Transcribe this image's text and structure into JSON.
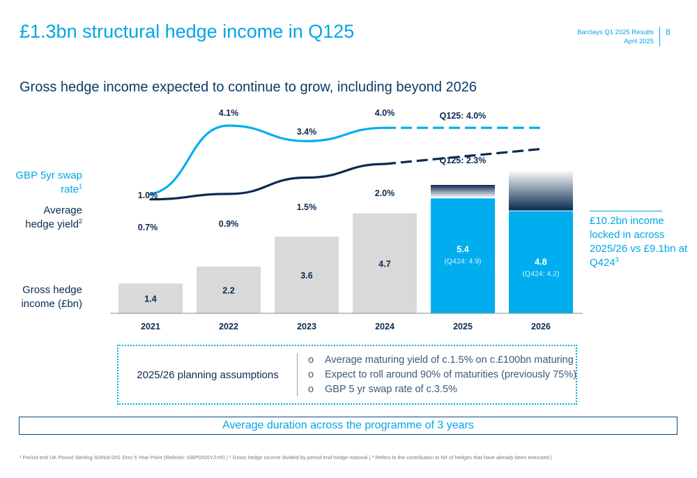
{
  "header": {
    "title": "£1.3bn structural hedge income in Q125",
    "report": "Barclays Q1 2025 Results",
    "date": "April 2025",
    "page": "8"
  },
  "subtitle": "Gross hedge income expected to continue to grow, including beyond 2026",
  "row_labels": {
    "swap_rate": "GBP 5yr swap rate",
    "swap_rate_note": "1",
    "hedge_yield": "Average hedge yield",
    "hedge_yield_note": "2",
    "income": "Gross hedge income (£bn)"
  },
  "chart_data": {
    "type": "bar",
    "categories": [
      "2021",
      "2022",
      "2023",
      "2024",
      "2025",
      "2026"
    ],
    "bars": {
      "values": [
        1.4,
        2.2,
        3.6,
        4.7,
        5.4,
        4.8
      ],
      "labels": [
        "1.4",
        "2.2",
        "3.6",
        "4.7",
        "5.4",
        "4.8"
      ],
      "prior_labels": [
        "",
        "",
        "",
        "",
        "(Q424: 4.9)",
        "(Q424: 4.2)"
      ],
      "forecast_extension": [
        0,
        0,
        0,
        0,
        0.6,
        1.9
      ],
      "ylim": [
        0,
        8
      ]
    },
    "swap_rate": {
      "x": [
        "2021",
        "2022",
        "2023",
        "2024"
      ],
      "values": [
        1.0,
        4.1,
        3.4,
        4.0
      ],
      "labels": [
        "1.0%",
        "4.1%",
        "3.4%",
        "4.0%"
      ],
      "forecast_value": 4.0,
      "forecast_label": "Q125: 4.0%"
    },
    "hedge_yield": {
      "x": [
        "2021",
        "2022",
        "2023",
        "2024"
      ],
      "values": [
        0.7,
        0.9,
        1.5,
        2.0
      ],
      "labels": [
        "0.7%",
        "0.9%",
        "1.5%",
        "2.0%"
      ],
      "forecast_value": 2.3,
      "forecast_label": "Q125: 2.3%"
    },
    "colors": {
      "actual_bar": "#d9d9d9",
      "forecast_bar": "#00aeef",
      "extension_top": "#0a2a50",
      "swap_line": "#00aeef",
      "yield_line": "#0a2a50"
    }
  },
  "locked": {
    "text": "£10.2bn income locked in across 2025/26 vs £9.1bn at Q424",
    "note": "3"
  },
  "assumptions": {
    "label": "2025/26 planning assumptions",
    "bullet": "o",
    "items": [
      "Average maturing yield of c.1.5% on c.£100bn maturing",
      "Expect to roll around 90% of maturities (previously 75%)",
      "GBP 5 yr swap rate of c.3.5%"
    ]
  },
  "duration": "Average duration across the programme of 3 years",
  "footnote": "¹ Period end UK Pound Sterling SONIA OIS Zero 5 Year Point (Refinitiv: GBPOIS5YZ=R) | ² Gross hedge income divided by period end hedge notional | ³ Refers to the contribution to NII of hedges that have already been executed |"
}
